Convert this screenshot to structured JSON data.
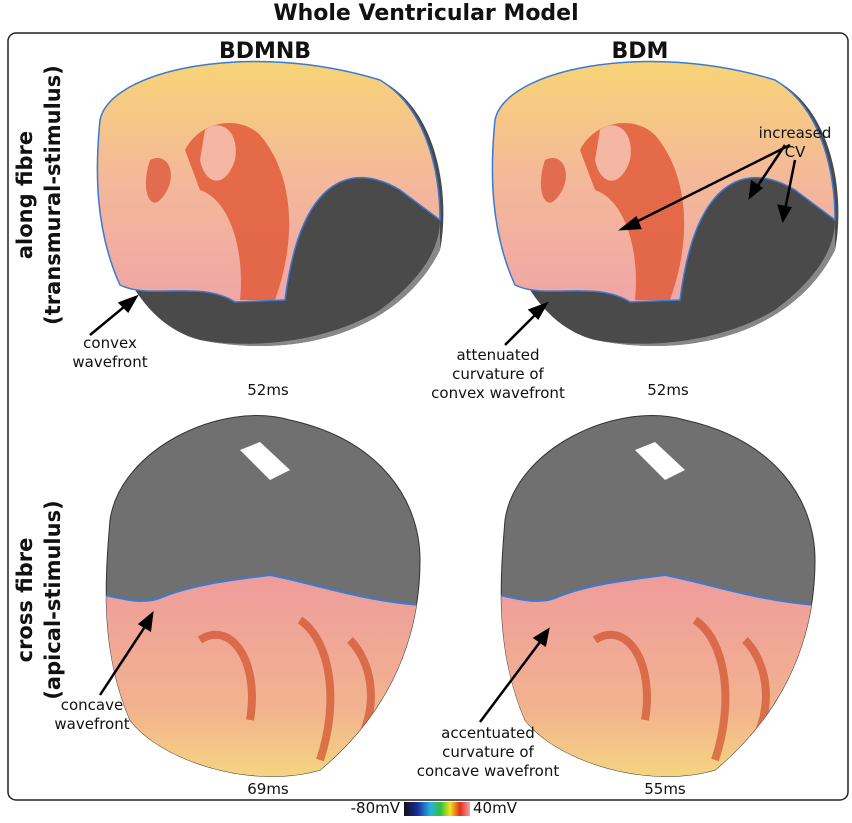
{
  "title": "Whole Ventricular Model",
  "columns": [
    "BDMNB",
    "BDM"
  ],
  "rows": [
    {
      "label": [
        "along fibre",
        "(transmural-stimulus)"
      ]
    },
    {
      "label": [
        "cross fibre",
        "(apical-stimulus)"
      ]
    }
  ],
  "panels": [
    {
      "time": "52ms",
      "annotation": [
        "convex",
        "wavefront"
      ]
    },
    {
      "time": "52ms",
      "annotation": [
        "attenuated",
        "curvature of",
        "convex wavefront"
      ],
      "annotation2": [
        "increased",
        "CV"
      ]
    },
    {
      "time": "69ms",
      "annotation": [
        "concave",
        "wavefront"
      ]
    },
    {
      "time": "55ms",
      "annotation": [
        "accentuated",
        "curvature of",
        "concave wavefront"
      ]
    }
  ],
  "colorbar": {
    "min_label": "-80mV",
    "max_label": "40mV"
  }
}
